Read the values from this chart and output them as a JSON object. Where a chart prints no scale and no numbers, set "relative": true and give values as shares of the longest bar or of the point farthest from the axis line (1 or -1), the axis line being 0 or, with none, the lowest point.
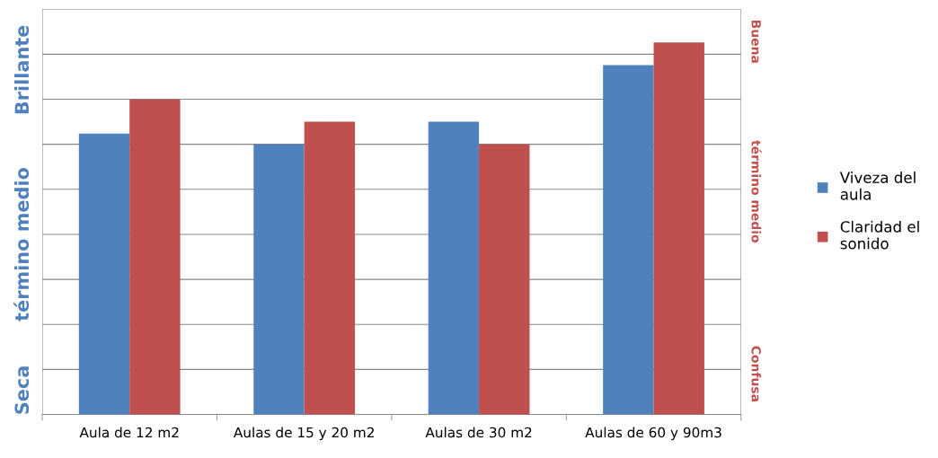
{
  "chart_data": {
    "type": "bar",
    "relative": true,
    "categories": [
      "Aula de 12 m2",
      "Aulas de 15 y 20 m2",
      "Aulas de 30 m2",
      "Aulas de 60 y 90m3"
    ],
    "series": [
      {
        "name": "Viveza del aula",
        "color": "#4f81bd",
        "values": [
          0.755,
          0.726,
          0.787,
          0.939
        ]
      },
      {
        "name": "Claridad el sonido",
        "color": "#c0504d",
        "values": [
          0.847,
          0.787,
          0.726,
          1.0
        ]
      }
    ],
    "annotations": [
      "Seca",
      "término medio",
      "Brillante",
      "Confusa",
      "término medio",
      "Buena"
    ],
    "grid": "y",
    "legend": "right"
  }
}
